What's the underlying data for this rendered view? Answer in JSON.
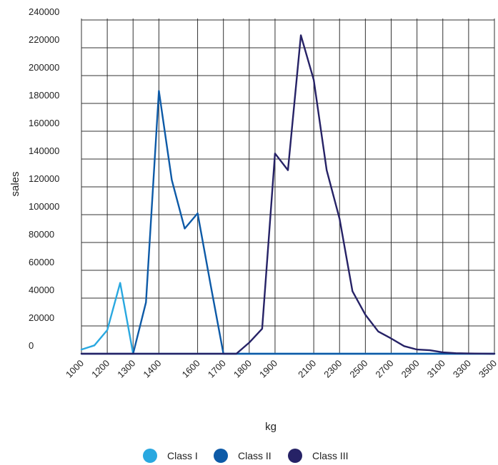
{
  "chart_data": {
    "type": "line",
    "title": "",
    "xlabel": "kg",
    "ylabel": "sales",
    "ylim": [
      0,
      240000
    ],
    "yticks": [
      0,
      20000,
      40000,
      60000,
      80000,
      100000,
      120000,
      140000,
      160000,
      180000,
      200000,
      220000,
      240000
    ],
    "x": [
      1000,
      1100,
      1200,
      1250,
      1300,
      1350,
      1400,
      1450,
      1500,
      1600,
      1650,
      1700,
      1750,
      1800,
      1850,
      1900,
      1950,
      2000,
      2100,
      2200,
      2300,
      2400,
      2500,
      2600,
      2700,
      2800,
      2900,
      3000,
      3100,
      3200,
      3300,
      3400,
      3500
    ],
    "xtick_labels": [
      "1000",
      "1200",
      "1300",
      "1400",
      "1600",
      "1700",
      "1800",
      "1900",
      "2100",
      "2300",
      "2500",
      "2700",
      "2900",
      "3100",
      "3300",
      "3500"
    ],
    "grid": true,
    "legend_position": "bottom",
    "series": [
      {
        "name": "Class I",
        "color": "#29a8e0",
        "values": [
          3000,
          6000,
          17000,
          51000,
          0,
          0,
          0,
          0,
          0,
          0,
          0,
          0,
          0,
          0,
          0,
          0,
          0,
          0,
          0,
          0,
          0,
          0,
          0,
          0,
          0,
          0,
          0,
          0,
          0,
          0,
          0,
          0,
          0
        ]
      },
      {
        "name": "Class II",
        "color": "#0d5aa7",
        "values": [
          0,
          0,
          0,
          0,
          0,
          37000,
          189000,
          125000,
          90000,
          101000,
          50000,
          0,
          0,
          0,
          0,
          0,
          0,
          0,
          0,
          0,
          0,
          0,
          0,
          0,
          0,
          0,
          0,
          0,
          0,
          0,
          0,
          0,
          0
        ]
      },
      {
        "name": "Class III",
        "color": "#262266",
        "values": [
          0,
          0,
          0,
          0,
          0,
          0,
          0,
          0,
          0,
          0,
          0,
          0,
          0,
          8000,
          18000,
          144000,
          132000,
          229000,
          197000,
          132000,
          97000,
          45000,
          28000,
          16000,
          11000,
          5500,
          3000,
          2500,
          1000,
          400,
          200,
          100,
          0
        ]
      }
    ]
  }
}
